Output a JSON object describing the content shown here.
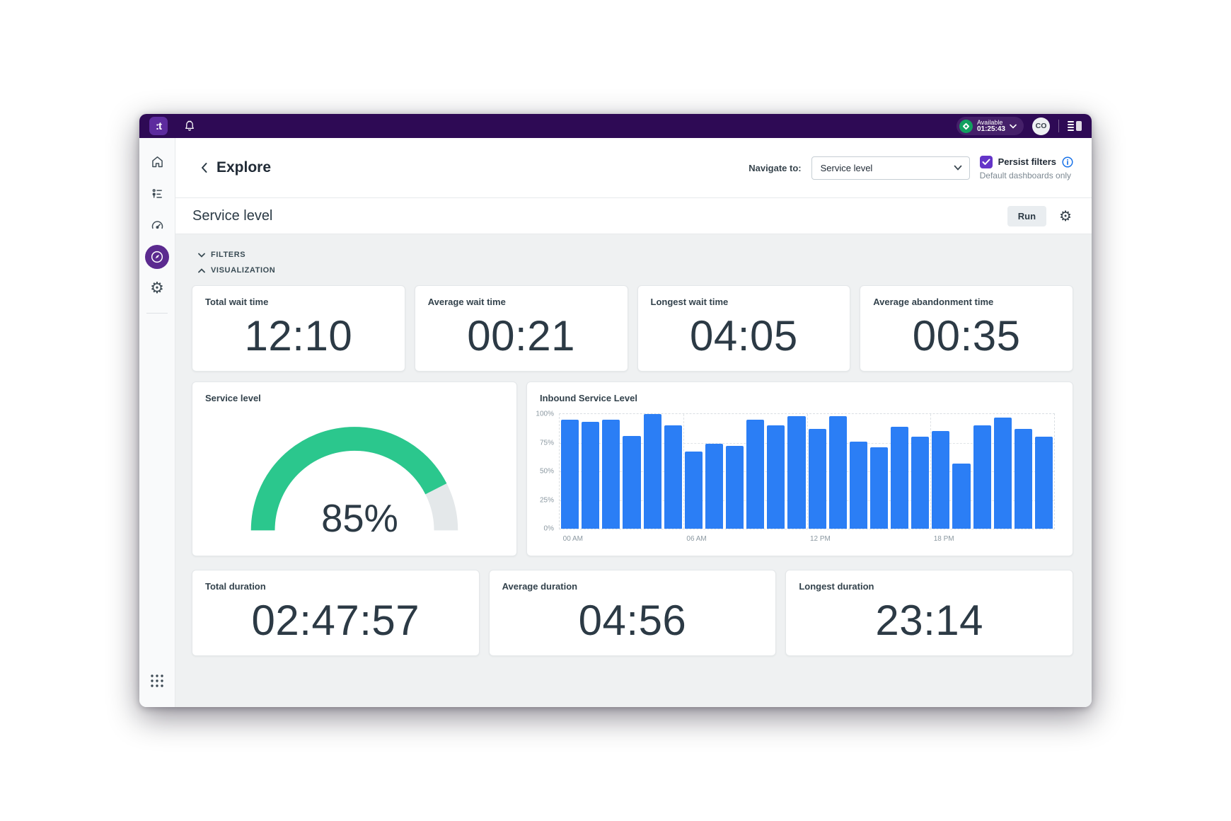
{
  "topbar": {
    "logo_glyph": ":t",
    "status": {
      "label": "Available",
      "time": "01:25:43"
    },
    "avatar_initials": "CO"
  },
  "header": {
    "title": "Explore",
    "navigate_label": "Navigate to:",
    "navigate_value": "Service level",
    "persist_label": "Persist filters",
    "persist_checked": true,
    "persist_note": "Default dashboards only"
  },
  "section": {
    "title": "Service level",
    "run_label": "Run"
  },
  "panels": {
    "filters_label": "FILTERS",
    "visualization_label": "VISUALIZATION"
  },
  "sidebar": {
    "items": [
      "home",
      "queues",
      "dashboard",
      "explore",
      "settings"
    ],
    "active": "explore",
    "bottom": "app-grid"
  },
  "kpi_row": [
    {
      "title": "Total wait time",
      "value": "12:10"
    },
    {
      "title": "Average wait time",
      "value": "00:21"
    },
    {
      "title": "Longest wait time",
      "value": "04:05"
    },
    {
      "title": "Average abandonment time",
      "value": "00:35"
    }
  ],
  "duration_row": [
    {
      "title": "Total duration",
      "value": "02:47:57"
    },
    {
      "title": "Average duration",
      "value": "04:56"
    },
    {
      "title": "Longest duration",
      "value": "23:14"
    }
  ],
  "chart_data": [
    {
      "type": "gauge",
      "title": "Service level",
      "value": 85,
      "max": 100,
      "label": "85%",
      "color": "#2bc78d",
      "track_color": "#e4e8ea"
    },
    {
      "type": "bar",
      "title": "Inbound Service Level",
      "categories": [
        "00:00",
        "01:00",
        "02:00",
        "03:00",
        "04:00",
        "05:00",
        "06:00",
        "07:00",
        "08:00",
        "09:00",
        "10:00",
        "11:00",
        "12:00",
        "13:00",
        "14:00",
        "15:00",
        "16:00",
        "17:00",
        "18:00",
        "19:00",
        "20:00",
        "21:00",
        "22:00",
        "23:00"
      ],
      "values": [
        95,
        93,
        95,
        81,
        100,
        90,
        67,
        74,
        72,
        95,
        90,
        98,
        87,
        98,
        76,
        71,
        89,
        80,
        85,
        57,
        90,
        97,
        87,
        80
      ],
      "x_tick_labels": [
        "00 AM",
        "06 AM",
        "12 PM",
        "18 PM"
      ],
      "y_tick_labels": [
        "0%",
        "25%",
        "50%",
        "75%",
        "100%"
      ],
      "ylim": [
        0,
        100
      ],
      "grid": "dashed",
      "legend": "none",
      "bar_color": "#2b7ef5"
    }
  ],
  "colors": {
    "topbar_purple": "#2e0a55",
    "accent_purple": "#5b2a8f",
    "checkbox_purple": "#6435c8",
    "status_green": "#12a05f",
    "gauge_green": "#2bc78d",
    "bar_blue": "#2b7ef5",
    "content_bg": "#eff1f2",
    "info_blue": "#1a73e8"
  }
}
